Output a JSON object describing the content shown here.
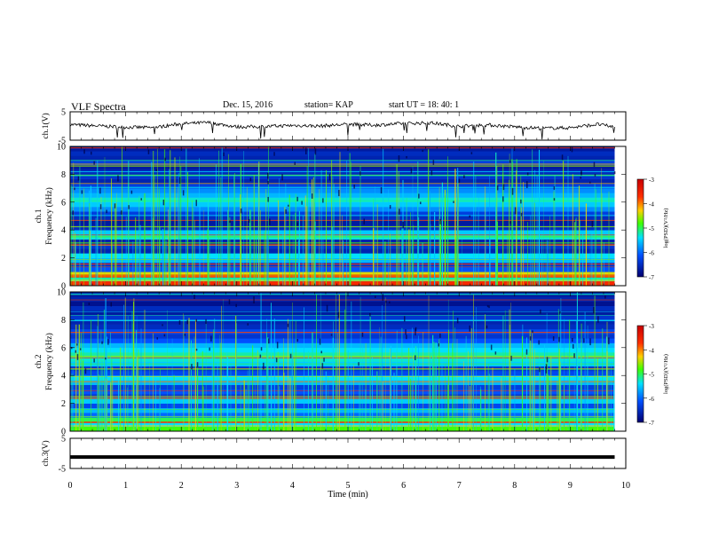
{
  "header": {
    "title": "VLF Spectra",
    "date": "Dec. 15, 2016",
    "station": "station= KAP",
    "start": "start  UT =   18: 40: 1"
  },
  "colorscale": {
    "label": "log(PSD)(V²/Hz)",
    "ticks": [
      "-3",
      "-4",
      "-5",
      "-6",
      "-7"
    ],
    "stops": [
      "#ff0000",
      "#ffff00",
      "#00ff00",
      "#00ffff",
      "#0000ff",
      "#000080"
    ]
  },
  "chart_data": [
    {
      "type": "line",
      "name": "ch1-waveform",
      "ylabel": "ch.1(V)",
      "ylim": [
        -5,
        5
      ],
      "yticks": [
        "5",
        "-5"
      ],
      "x_range": [
        0,
        10
      ],
      "x_end": 9.8,
      "x": [
        0,
        0.5,
        1.0,
        1.5,
        2.0,
        2.5,
        3.0,
        3.5,
        4.0,
        4.5,
        5.0,
        5.5,
        6.0,
        6.5,
        7.0,
        7.5,
        8.0,
        8.5,
        9.0,
        9.5,
        9.8
      ],
      "values": [
        0.5,
        0.0,
        -0.4,
        -0.6,
        0.8,
        1.2,
        -0.3,
        -0.2,
        0.2,
        0.0,
        0.6,
        0.3,
        0.9,
        1.1,
        -0.1,
        0.4,
        -0.3,
        -0.8,
        -0.6,
        0.6,
        -0.4
      ]
    },
    {
      "type": "heatmap",
      "name": "ch1-spectrogram",
      "ylabel": "ch.1\nFrequency (kHz)",
      "ylim": [
        0,
        10
      ],
      "yticks": [
        "0",
        "2",
        "4",
        "6",
        "8",
        "10"
      ],
      "x_range": [
        0,
        10
      ],
      "x_end": 9.8,
      "values_unit": "log(PSD)(V²/Hz)",
      "band_levels": [
        -3.6,
        -5.2,
        -4.3,
        -6.1,
        -6.4,
        -5.6,
        -5.4,
        -6.6,
        -6.4,
        -6.6,
        -5.3,
        -5.5,
        -6.5,
        -6.7,
        -6.5,
        -6.3,
        -5.8,
        -5.5,
        -5.3,
        -5.6,
        -5.8,
        -6.3,
        -6.6,
        -6.4,
        -6.5,
        -6.7,
        -6.3,
        -6.6,
        -6.5,
        -6.7
      ]
    },
    {
      "type": "heatmap",
      "name": "ch2-spectrogram",
      "ylabel": "ch.2\nFrequency (kHz)",
      "ylim": [
        0,
        10
      ],
      "yticks": [
        "0",
        "2",
        "4",
        "6",
        "8",
        "10"
      ],
      "x_range": [
        0,
        10
      ],
      "x_end": 9.8,
      "values_unit": "log(PSD)(V²/Hz)",
      "band_levels": [
        -4.8,
        -5.4,
        -5.0,
        -6.0,
        -5.6,
        -6.2,
        -5.5,
        -6.4,
        -6.1,
        -6.3,
        -5.6,
        -5.4,
        -6.2,
        -6.4,
        -5.5,
        -5.3,
        -5.2,
        -5.4,
        -5.6,
        -6.1,
        -6.4,
        -6.2,
        -6.5,
        -6.6,
        -6.4,
        -6.7,
        -6.5,
        -6.8,
        -6.6,
        -6.7
      ]
    },
    {
      "type": "line",
      "name": "ch3-waveform",
      "ylabel": "ch.3(V)",
      "ylim": [
        -5,
        5
      ],
      "yticks": [
        "5",
        "-5"
      ],
      "x_range": [
        0,
        10
      ],
      "x_end": 9.8,
      "x": [
        0,
        9.8
      ],
      "values": [
        -1.2,
        -1.2
      ]
    }
  ],
  "xaxis": {
    "label": "Time (min)",
    "ticks": [
      "0",
      "1",
      "2",
      "3",
      "4",
      "5",
      "6",
      "7",
      "8",
      "9",
      "10"
    ]
  }
}
